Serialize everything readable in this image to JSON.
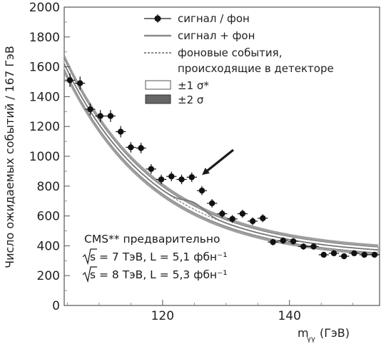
{
  "chart_data": {
    "type": "scatter",
    "xlabel_main": "m",
    "xlabel_sub": "γγ",
    "xlabel_unit": "(ГэВ)",
    "ylabel": "Число ожидаемых событий / 167 ГэВ",
    "xlim": [
      104.5,
      154.2
    ],
    "ylim": [
      0,
      2000
    ],
    "x_ticks": [
      120,
      140
    ],
    "y_ticks": [
      0,
      200,
      400,
      600,
      800,
      1000,
      1200,
      1400,
      1600,
      1800,
      2000
    ],
    "grid": false,
    "legend_position": "top-right",
    "legend": [
      {
        "label": "сигнал / фон",
        "style": "points"
      },
      {
        "label": "сигнал + фон",
        "style": "solid-line"
      },
      {
        "label_lines": [
          "фоновые события,",
          "происходящие в детекторе"
        ],
        "style": "dashed-line"
      },
      {
        "label": "±1 σ*",
        "style": "white-band"
      },
      {
        "label": "±2 σ",
        "style": "dark-band"
      }
    ],
    "series": [
      {
        "name": "сигнал / фон",
        "x": [
          105.4,
          107.0,
          108.6,
          110.2,
          111.8,
          113.4,
          115.0,
          116.6,
          118.2,
          119.8,
          121.4,
          123.0,
          124.6,
          126.2,
          127.8,
          129.4,
          131.0,
          132.6,
          134.2,
          135.8,
          137.4,
          139.0,
          140.6,
          142.2,
          143.8,
          145.4,
          147.0,
          148.6,
          150.2,
          151.8,
          153.4
        ],
        "y": [
          1510,
          1490,
          1315,
          1270,
          1270,
          1165,
          1060,
          1055,
          915,
          845,
          865,
          845,
          860,
          770,
          685,
          615,
          580,
          615,
          565,
          585,
          425,
          435,
          430,
          395,
          395,
          340,
          350,
          330,
          350,
          340,
          340
        ],
        "err": [
          45,
          45,
          40,
          40,
          40,
          38,
          35,
          35,
          33,
          32,
          32,
          32,
          32,
          30,
          28,
          27,
          26,
          27,
          26,
          26,
          22,
          22,
          22,
          21,
          21,
          19,
          20,
          19,
          20,
          19,
          19
        ]
      }
    ],
    "annotations": {
      "experiment": "CMS** предварительно",
      "run1": "s = 7 ТэВ, L = 5,1 фбн⁻¹",
      "run2": "s = 8 ТэВ, L = 5,3 фбн⁻¹"
    }
  }
}
